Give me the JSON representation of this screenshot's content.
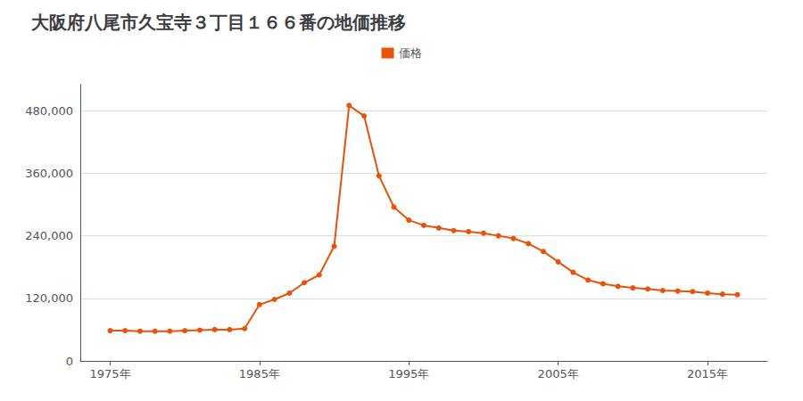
{
  "chart_data": {
    "type": "line",
    "title": "大阪府八尾市久宝寺３丁目１６６番の地価推移",
    "x": [
      1975,
      1976,
      1977,
      1978,
      1979,
      1980,
      1981,
      1982,
      1983,
      1984,
      1985,
      1986,
      1987,
      1988,
      1989,
      1990,
      1991,
      1992,
      1993,
      1994,
      1995,
      1996,
      1997,
      1998,
      1999,
      2000,
      2001,
      2002,
      2003,
      2004,
      2005,
      2006,
      2007,
      2008,
      2009,
      2010,
      2011,
      2012,
      2013,
      2014,
      2015,
      2016,
      2017
    ],
    "series": [
      {
        "name": "価格",
        "color": "#e8530a",
        "marker": "circle",
        "line_style": "solid",
        "values": [
          58000,
          58000,
          57000,
          57000,
          57000,
          58000,
          59000,
          60000,
          60000,
          62000,
          108000,
          118000,
          130000,
          150000,
          165000,
          220000,
          490000,
          470000,
          355000,
          295000,
          270000,
          260000,
          255000,
          250000,
          248000,
          245000,
          240000,
          235000,
          225000,
          210000,
          190000,
          170000,
          155000,
          148000,
          143000,
          140000,
          138000,
          135000,
          134000,
          133000,
          130000,
          128000,
          127000
        ]
      }
    ],
    "xlim": [
      1973,
      2019
    ],
    "xticks": [
      {
        "value": 1975,
        "label": "1975年"
      },
      {
        "value": 1985,
        "label": "1985年"
      },
      {
        "value": 1995,
        "label": "1995年"
      },
      {
        "value": 2005,
        "label": "2005年"
      },
      {
        "value": 2015,
        "label": "2015年"
      }
    ],
    "ylim": [
      0,
      530000
    ],
    "yticks": [
      0,
      {
        "value": 120000,
        "label": "120,000"
      },
      {
        "value": 240000,
        "label": "240,000"
      },
      {
        "value": 360000,
        "label": "360,000"
      },
      {
        "value": 480000,
        "label": "480,000"
      }
    ],
    "grid": "y",
    "legend": "top"
  }
}
